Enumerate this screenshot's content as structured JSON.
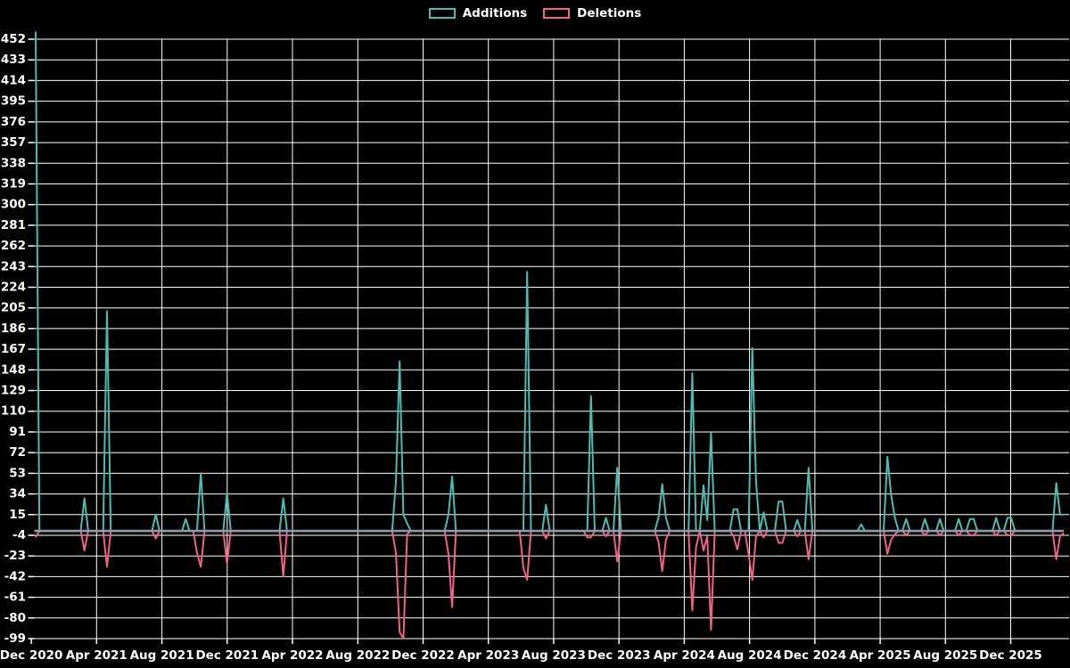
{
  "legend": {
    "additions_label": "Additions",
    "deletions_label": "Deletions"
  },
  "colors": {
    "background": "#000000",
    "grid": "#ffffff",
    "text": "#ffffff",
    "additions": "#4cbcb1",
    "deletions": "#f2618a",
    "zero_line": "#8c9bab"
  },
  "chart_data": {
    "type": "line",
    "legend_position": "top-center",
    "grid": true,
    "y_ticks": [
      452,
      433,
      414,
      395,
      376,
      357,
      338,
      319,
      300,
      281,
      262,
      243,
      224,
      205,
      186,
      167,
      148,
      129,
      110,
      91,
      72,
      53,
      34,
      15,
      -4,
      -23,
      -42,
      -61,
      -80,
      -99
    ],
    "y_tick_step": 19,
    "ylim": [
      -99,
      461
    ],
    "x_tick_labels": [
      "Dec 2020",
      "Apr 2021",
      "Aug 2021",
      "Dec 2021",
      "Apr 2022",
      "Aug 2022",
      "Dec 2022",
      "Apr 2023",
      "Aug 2023",
      "Dec 2023",
      "Apr 2024",
      "Aug 2024",
      "Dec 2024",
      "Apr 2025",
      "Aug 2025",
      "Dec 2025"
    ],
    "x_unit": "week",
    "n_weeks": 275,
    "default_value": 0,
    "series_names": [
      "Additions",
      "Deletions"
    ],
    "spikes_format": [
      "week_index",
      "additions",
      "deletions"
    ],
    "spikes": [
      [
        0,
        459,
        -6
      ],
      [
        13,
        30,
        -18
      ],
      [
        19,
        202,
        -33
      ],
      [
        32,
        15,
        -7
      ],
      [
        40,
        11,
        0
      ],
      [
        43,
        0,
        -20
      ],
      [
        44,
        53,
        -33
      ],
      [
        51,
        35,
        -30
      ],
      [
        66,
        30,
        -42
      ],
      [
        96,
        45,
        -20
      ],
      [
        97,
        156,
        -93
      ],
      [
        98,
        15,
        -99
      ],
      [
        99,
        7,
        -3
      ],
      [
        110,
        15,
        -21
      ],
      [
        111,
        50,
        -70
      ],
      [
        130,
        0,
        -34
      ],
      [
        131,
        238,
        -45
      ],
      [
        136,
        24,
        -7
      ],
      [
        147,
        0,
        -6
      ],
      [
        148,
        124,
        -6
      ],
      [
        152,
        12,
        -5
      ],
      [
        155,
        58,
        -28
      ],
      [
        166,
        12,
        -10
      ],
      [
        167,
        43,
        -37
      ],
      [
        168,
        12,
        -8
      ],
      [
        175,
        145,
        -73
      ],
      [
        176,
        0,
        -15
      ],
      [
        178,
        42,
        -18
      ],
      [
        179,
        10,
        -5
      ],
      [
        180,
        90,
        -91
      ],
      [
        186,
        20,
        -5
      ],
      [
        187,
        20,
        -17
      ],
      [
        190,
        0,
        -21
      ],
      [
        191,
        168,
        -45
      ],
      [
        192,
        45,
        -5
      ],
      [
        194,
        17,
        -6
      ],
      [
        198,
        27,
        -11
      ],
      [
        199,
        27,
        -11
      ],
      [
        203,
        10,
        -5
      ],
      [
        206,
        58,
        -26
      ],
      [
        220,
        6,
        0
      ],
      [
        227,
        68,
        -21
      ],
      [
        228,
        33,
        -8
      ],
      [
        229,
        12,
        -3
      ],
      [
        232,
        11,
        -4
      ],
      [
        237,
        11,
        -4
      ],
      [
        241,
        11,
        -4
      ],
      [
        246,
        11,
        -4
      ],
      [
        249,
        11,
        -4
      ],
      [
        250,
        11,
        -4
      ],
      [
        256,
        12,
        -4
      ],
      [
        259,
        12,
        -4
      ],
      [
        260,
        12,
        -4
      ],
      [
        272,
        44,
        -26
      ],
      [
        273,
        15,
        -5
      ],
      [
        274,
        15,
        -2
      ]
    ]
  }
}
